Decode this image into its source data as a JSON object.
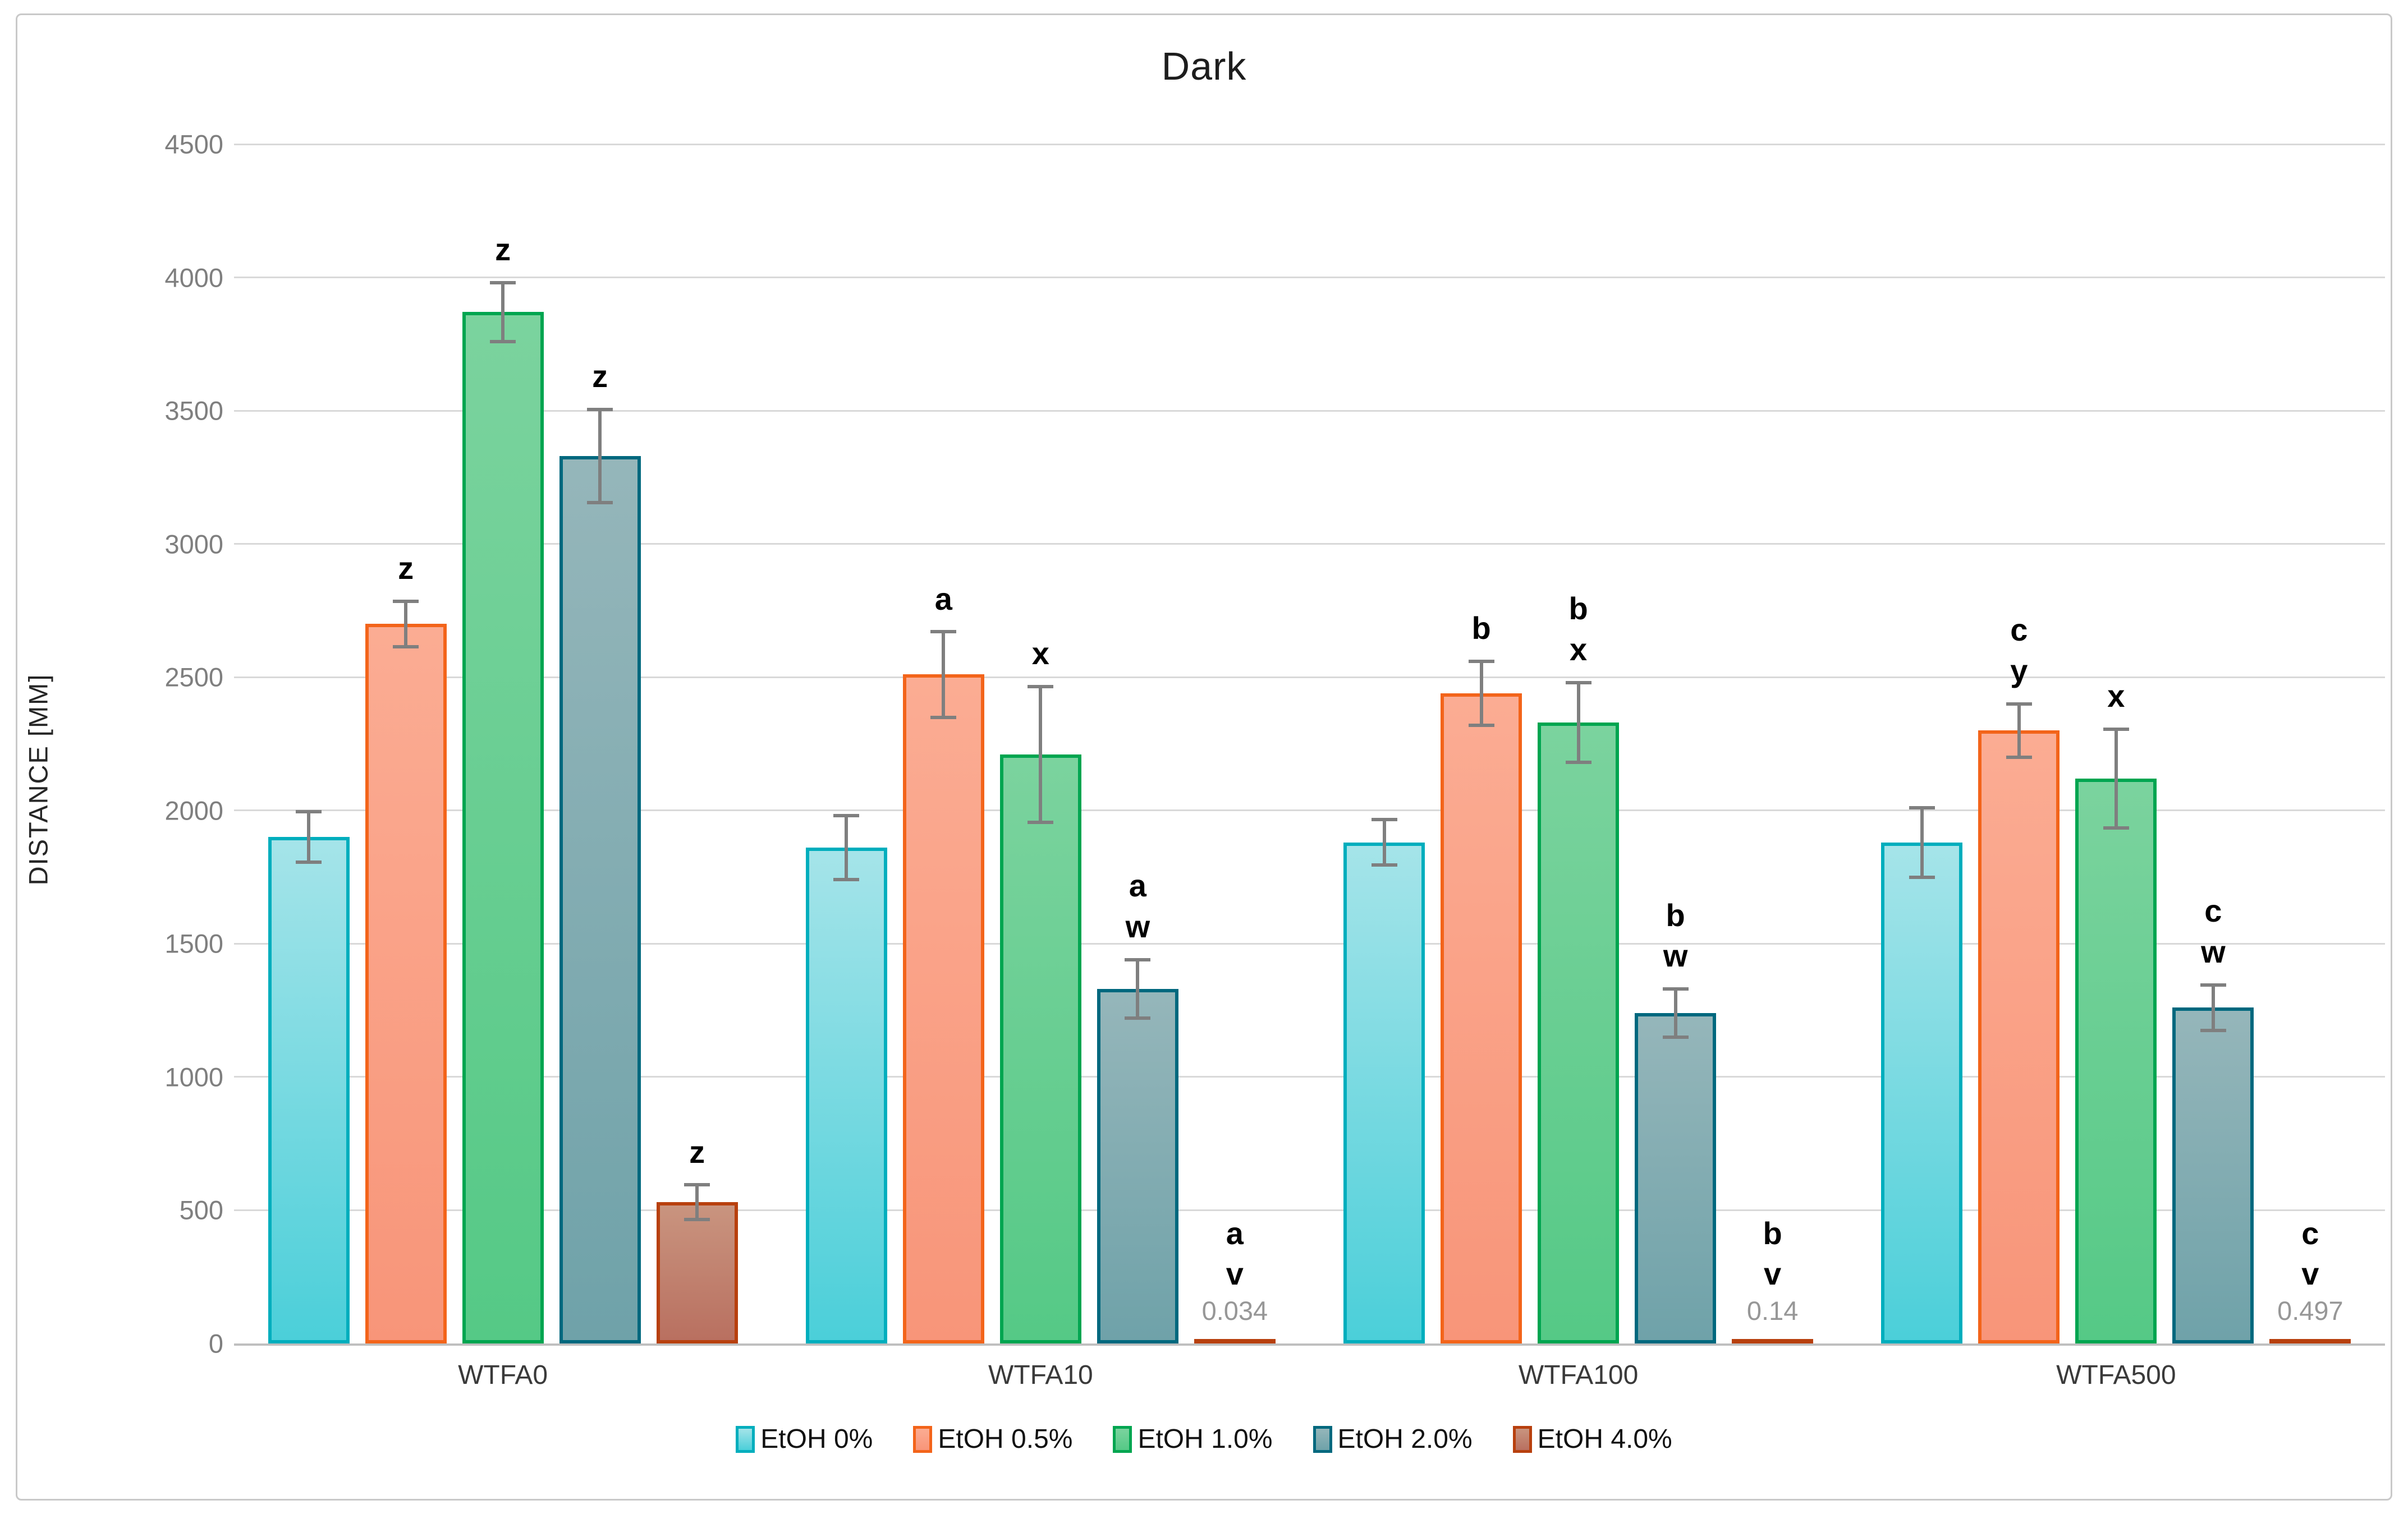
{
  "chart_data": {
    "type": "bar",
    "title": "Dark",
    "ylabel": "DISTANCE [MM]",
    "ylim": [
      0,
      4500
    ],
    "ytick_step": 500,
    "grid": true,
    "legend_position": "bottom",
    "categories": [
      "WTFA0",
      "WTFA10",
      "WTFA100",
      "WTFA500"
    ],
    "series": [
      {
        "name": "EtOH 0%",
        "values": [
          1900,
          1860,
          1880,
          1880
        ],
        "errors": [
          95,
          120,
          85,
          130
        ],
        "letters": [
          [],
          [],
          [],
          []
        ],
        "value_labels": [
          "",
          "",
          "",
          ""
        ],
        "border": "#00AEBD",
        "fill_top": "#A5E4E9",
        "fill_bottom": "#4BCFD9"
      },
      {
        "name": "EtOH 0.5%",
        "values": [
          2700,
          2510,
          2440,
          2300
        ],
        "errors": [
          85,
          160,
          120,
          100
        ],
        "letters": [
          [
            "z"
          ],
          [
            "a"
          ],
          [
            "b"
          ],
          [
            "c",
            "y"
          ]
        ],
        "value_labels": [
          "",
          "",
          "",
          ""
        ],
        "border": "#F3641A",
        "fill_top": "#FBAC93",
        "fill_bottom": "#F89579"
      },
      {
        "name": "EtOH 1.0%",
        "values": [
          3870,
          2210,
          2330,
          2120
        ],
        "errors": [
          110,
          255,
          150,
          185
        ],
        "letters": [
          [
            "z"
          ],
          [
            "x"
          ],
          [
            "b",
            "x"
          ],
          [
            "x"
          ]
        ],
        "value_labels": [
          "",
          "",
          "",
          ""
        ],
        "border": "#00A550",
        "fill_top": "#7BD39E",
        "fill_bottom": "#55C986"
      },
      {
        "name": "EtOH 2.0%",
        "values": [
          3330,
          1330,
          1240,
          1260
        ],
        "errors": [
          175,
          110,
          90,
          85
        ],
        "letters": [
          [
            "z"
          ],
          [
            "a",
            "w"
          ],
          [
            "b",
            "w"
          ],
          [
            "c",
            "w"
          ]
        ],
        "value_labels": [
          "",
          "",
          "",
          ""
        ],
        "border": "#00687E",
        "fill_top": "#95B6BA",
        "fill_bottom": "#6FA2A9"
      },
      {
        "name": "EtOH 4.0%",
        "values": [
          530,
          0.034,
          0.14,
          0.497
        ],
        "errors": [
          65,
          0,
          0,
          0
        ],
        "letters": [
          [
            "z"
          ],
          [
            "a",
            "v"
          ],
          [
            "b",
            "v"
          ],
          [
            "c",
            "v"
          ]
        ],
        "value_labels": [
          "",
          "0.034",
          "0.14",
          "0.497"
        ],
        "border": "#B8400E",
        "fill_top": "#C9947F",
        "fill_bottom": "#B97060"
      }
    ],
    "colors": {
      "gridline": "#D9D9D9",
      "axis_line": "#BFBFBF",
      "error_bar": "#7F7F7F",
      "tick_label": "#7F7F7F",
      "category_label": "#3A3A3A",
      "value_label": "#979797",
      "frame_border": "#C9C9C9"
    }
  }
}
